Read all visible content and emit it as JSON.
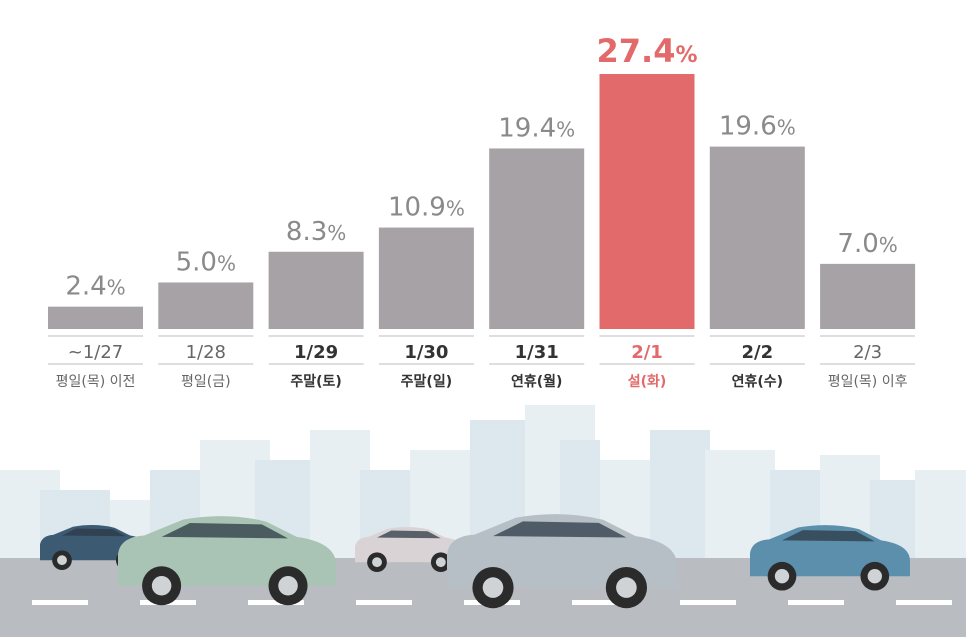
{
  "chart_data": {
    "type": "bar",
    "categories": [
      "~1/27",
      "1/28",
      "1/29",
      "1/30",
      "1/31",
      "2/1",
      "2/2",
      "2/3"
    ],
    "sublabels": [
      "평일(목) 이전",
      "평일(금)",
      "주말(토)",
      "주말(일)",
      "연휴(월)",
      "설(화)",
      "연휴(수)",
      "평일(목) 이후"
    ],
    "values": [
      2.4,
      5.0,
      8.3,
      10.9,
      19.4,
      27.4,
      19.6,
      7.0
    ],
    "value_labels": [
      "2.4",
      "5.0",
      "8.3",
      "10.9",
      "19.4",
      "27.4",
      "19.6",
      "7.0"
    ],
    "unit": "%",
    "highlight_index": 5,
    "bold_indices": [
      2,
      3,
      4,
      5,
      6
    ],
    "ylim": [
      0,
      27.4
    ],
    "grid": false,
    "colors": {
      "bar": "#a7a2a5",
      "highlight": "#e26a6a",
      "label": "#8a8a8a",
      "label_bold": "#333333"
    }
  },
  "scene": {
    "car_colors": [
      "#3d5a73",
      "#a9c4b4",
      "#d9d3d6",
      "#b7bfc6",
      "#5b8fac"
    ]
  }
}
